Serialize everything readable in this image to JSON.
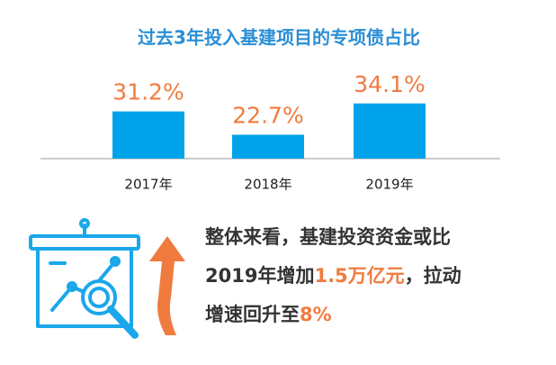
{
  "chart_data": {
    "type": "bar",
    "title": "过去3年投入基建项目的专项债占比",
    "categories": [
      "2017年",
      "2018年",
      "2019年"
    ],
    "values": [
      31.2,
      22.7,
      34.1
    ],
    "value_labels": [
      "31.2%",
      "22.7%",
      "34.1%"
    ],
    "color": "#00a3ea",
    "label_color": "#f07b3f",
    "ylim": [
      14,
      36
    ],
    "annotation": [
      [
        {
          "text": "整体来看，基建投资资金或比",
          "color": "#333333"
        }
      ],
      [
        {
          "text": "2019年增加",
          "color": "#333333"
        },
        {
          "text": "1.5万亿元",
          "color": "#f07b3f"
        },
        {
          "text": "，拉动",
          "color": "#333333"
        }
      ],
      [
        {
          "text": "增速回升至",
          "color": "#333333"
        },
        {
          "text": "8%",
          "color": "#f07b3f"
        }
      ]
    ]
  }
}
